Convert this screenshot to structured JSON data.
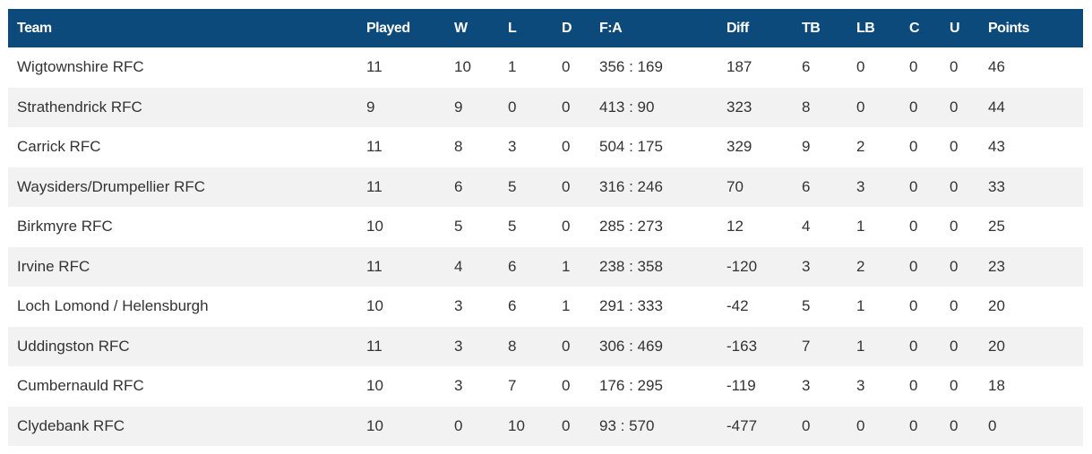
{
  "table": {
    "headers": [
      "Team",
      "Played",
      "W",
      "L",
      "D",
      "F:A",
      "Diff",
      "TB",
      "LB",
      "C",
      "U",
      "Points"
    ],
    "rows": [
      [
        "Wigtownshire RFC",
        "11",
        "10",
        "1",
        "0",
        "356 : 169",
        "187",
        "6",
        "0",
        "0",
        "0",
        "46"
      ],
      [
        "Strathendrick RFC",
        "9",
        "9",
        "0",
        "0",
        "413 : 90",
        "323",
        "8",
        "0",
        "0",
        "0",
        "44"
      ],
      [
        "Carrick RFC",
        "11",
        "8",
        "3",
        "0",
        "504 : 175",
        "329",
        "9",
        "2",
        "0",
        "0",
        "43"
      ],
      [
        "Waysiders/Drumpellier RFC",
        "11",
        "6",
        "5",
        "0",
        "316 : 246",
        "70",
        "6",
        "3",
        "0",
        "0",
        "33"
      ],
      [
        "Birkmyre RFC",
        "10",
        "5",
        "5",
        "0",
        "285 : 273",
        "12",
        "4",
        "1",
        "0",
        "0",
        "25"
      ],
      [
        "Irvine RFC",
        "11",
        "4",
        "6",
        "1",
        "238 : 358",
        "-120",
        "3",
        "2",
        "0",
        "0",
        "23"
      ],
      [
        "Loch Lomond / Helensburgh",
        "10",
        "3",
        "6",
        "1",
        "291 : 333",
        "-42",
        "5",
        "1",
        "0",
        "0",
        "20"
      ],
      [
        "Uddingston RFC",
        "11",
        "3",
        "8",
        "0",
        "306 : 469",
        "-163",
        "7",
        "1",
        "0",
        "0",
        "20"
      ],
      [
        "Cumbernauld RFC",
        "10",
        "3",
        "7",
        "0",
        "176 : 295",
        "-119",
        "3",
        "3",
        "0",
        "0",
        "18"
      ],
      [
        "Clydebank RFC",
        "10",
        "0",
        "10",
        "0",
        "93 : 570",
        "-477",
        "0",
        "0",
        "0",
        "0",
        "0"
      ]
    ]
  },
  "colors": {
    "header_bg": "#0d4a7c",
    "header_text": "#ffffff",
    "row_alt_bg": "#f2f2f2",
    "cell_text": "#333333"
  }
}
